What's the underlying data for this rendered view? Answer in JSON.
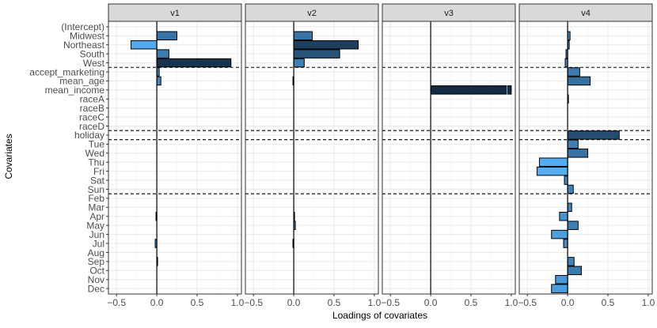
{
  "chart_data": {
    "type": "bar",
    "orientation": "horizontal",
    "facets": [
      "v1",
      "v2",
      "v3",
      "v4"
    ],
    "xlabel": "Loadings of covariates",
    "ylabel": "Covariates",
    "xlim": [
      -0.6,
      1.05
    ],
    "xticks": [
      -0.5,
      0.0,
      0.5,
      1.0
    ],
    "xtick_labels": [
      "−0.5",
      "0.0",
      "0.5",
      "1.0"
    ],
    "grid": true,
    "covariates": [
      "(Intercept)",
      "Midwest",
      "Northeast",
      "South",
      "West",
      "accept_marketing",
      "mean_age",
      "mean_income",
      "raceA",
      "raceB",
      "raceC",
      "raceD",
      "holiday",
      "Tue",
      "Wed",
      "Thu",
      "Fri",
      "Sat",
      "Sun",
      "Feb",
      "Mar",
      "Apr",
      "May",
      "Jun",
      "Jul",
      "Aug",
      "Sep",
      "Oct",
      "Nov",
      "Dec"
    ],
    "group_separators_after": [
      "West",
      "raceD",
      "holiday",
      "Sun"
    ],
    "series": [
      {
        "facet": "v1",
        "values": [
          0.0,
          0.25,
          -0.32,
          0.15,
          0.92,
          0.03,
          0.05,
          0.0,
          0.0,
          0.0,
          0.0,
          0.0,
          0.0,
          0.0,
          0.0,
          0.0,
          0.0,
          0.0,
          0.0,
          0.0,
          0.0,
          -0.01,
          0.0,
          0.0,
          -0.02,
          0.0,
          0.01,
          0.0,
          0.0,
          0.0
        ]
      },
      {
        "facet": "v2",
        "values": [
          0.0,
          0.23,
          0.8,
          0.57,
          0.13,
          0.0,
          -0.01,
          0.0,
          0.0,
          0.0,
          0.0,
          0.0,
          0.0,
          0.0,
          0.0,
          0.0,
          0.0,
          0.0,
          0.0,
          0.0,
          0.0,
          0.01,
          0.02,
          0.0,
          -0.01,
          0.0,
          0.0,
          0.0,
          0.0,
          0.0
        ]
      },
      {
        "facet": "v3",
        "values": [
          0.0,
          0.0,
          0.0,
          0.0,
          0.0,
          0.0,
          0.0,
          1.0,
          0.0,
          0.0,
          0.0,
          0.0,
          0.0,
          0.0,
          0.0,
          0.0,
          0.0,
          0.0,
          0.0,
          0.0,
          0.0,
          0.0,
          0.0,
          0.0,
          0.0,
          0.0,
          0.0,
          0.0,
          0.0,
          0.0
        ]
      },
      {
        "facet": "v4",
        "values": [
          0.0,
          0.03,
          0.02,
          -0.02,
          -0.03,
          0.15,
          0.28,
          0.0,
          0.01,
          0.0,
          0.0,
          0.0,
          0.64,
          0.13,
          0.25,
          -0.35,
          -0.38,
          -0.04,
          0.07,
          0.0,
          0.05,
          -0.1,
          0.13,
          -0.2,
          -0.05,
          0.0,
          0.08,
          0.17,
          -0.15,
          -0.2
        ]
      }
    ],
    "colors": {
      "fill_low": "#56b1f7",
      "fill_high": "#132b43",
      "bar_border": "#000000",
      "panel_border": "#333333",
      "strip_fill": "#d9d9d9",
      "grid_major": "#ebebeb",
      "grid_minor": "#f5f5f5",
      "zero_line": "#000000",
      "separator": "#000000"
    },
    "legend": "none"
  }
}
